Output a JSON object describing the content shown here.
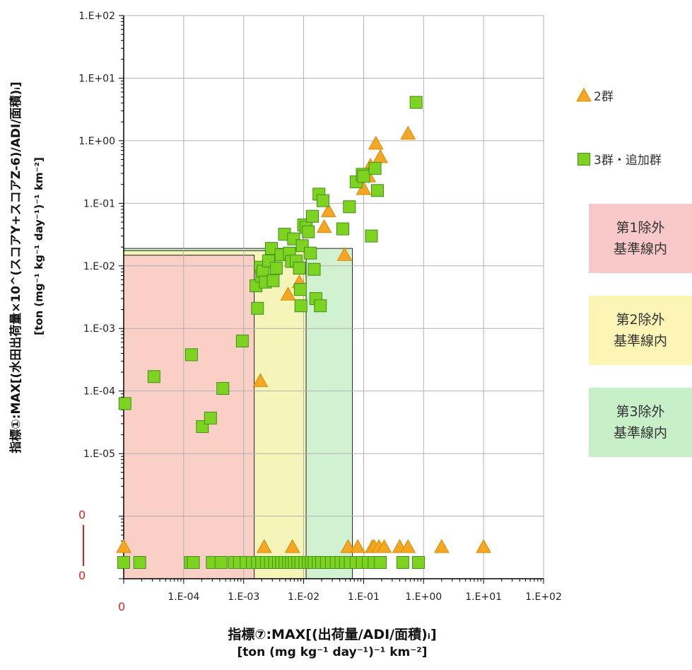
{
  "chart_data": {
    "type": "scatter",
    "x_axis": {
      "scale": "log",
      "range": [
        "1.E-05",
        "1.E+02"
      ],
      "ticks": [
        "1.E-04",
        "1.E-03",
        "1.E-02",
        "1.E-01",
        "1.E+00",
        "1.E+01",
        "1.E+02"
      ],
      "zero_label": "0",
      "label_line1": "指標⑦:MAX[(出荷量/ADI/面積)ᵢ]",
      "label_line2": "[ton (mg kg⁻¹ day⁻¹)⁻¹ km⁻²]"
    },
    "y_axis": {
      "scale": "log",
      "range": [
        "1.E-07",
        "1.E+02"
      ],
      "ticks": [
        "1.E+02",
        "1.E+01",
        "1.E+00",
        "1.E-01",
        "1.E-02",
        "1.E-03",
        "1.E-04",
        "1.E-05"
      ],
      "zero_labels": [
        "0",
        "0"
      ],
      "label_line1": "指標①:MAX[(水田出荷量×10^(スコアY+スコアZ-6)/ADI/面積)ᵢ]",
      "label_line2": "[ton (mg⁻¹ kg⁻¹ day⁻¹)⁻¹ km⁻²]"
    },
    "grid": true,
    "legend_position": "right",
    "series": [
      {
        "name": "2群",
        "marker": "triangle",
        "color": "#f5a623",
        "points": [
          [
            1e-05,
            0
          ],
          [
            0.0019,
            0.000145
          ],
          [
            0.0022,
            0
          ],
          [
            0.0055,
            0.0035
          ],
          [
            0.0065,
            0
          ],
          [
            0.0085,
            0.0055
          ],
          [
            0.022,
            0.042
          ],
          [
            0.026,
            0.075
          ],
          [
            0.048,
            0.015
          ],
          [
            0.055,
            0
          ],
          [
            0.08,
            0
          ],
          [
            0.1,
            0.17
          ],
          [
            0.12,
            0.27
          ],
          [
            0.13,
            0.4
          ],
          [
            0.14,
            0
          ],
          [
            0.15,
            0
          ],
          [
            0.16,
            0.9
          ],
          [
            0.18,
            0
          ],
          [
            0.19,
            0.55
          ],
          [
            0.22,
            0
          ],
          [
            0.4,
            0
          ],
          [
            0.55,
            1.3
          ],
          [
            0.55,
            0
          ],
          [
            2.0,
            0
          ],
          [
            10.0,
            0
          ]
        ]
      },
      {
        "name": "3群・追加群",
        "marker": "square",
        "color": "#7ed321",
        "points": [
          [
            1.05e-05,
            6.3e-05
          ],
          [
            3.2e-05,
            0.00017
          ],
          [
            0.000135,
            0.00038
          ],
          [
            0.000205,
            2.7e-05
          ],
          [
            0.00028,
            3.7e-05
          ],
          [
            0.00045,
            0.00011
          ],
          [
            0.00095,
            0.00063
          ],
          [
            0.0016,
            0.0048
          ],
          [
            0.0017,
            0.0021
          ],
          [
            0.0019,
            0.0095
          ],
          [
            0.002,
            0.0068
          ],
          [
            0.0021,
            0.0082
          ],
          [
            0.0023,
            0.0055
          ],
          [
            0.0026,
            0.012
          ],
          [
            0.0029,
            0.019
          ],
          [
            0.0031,
            0.0058
          ],
          [
            0.0035,
            0.0092
          ],
          [
            0.0042,
            0.015
          ],
          [
            0.0048,
            0.032
          ],
          [
            0.0058,
            0.016
          ],
          [
            0.0063,
            0.0118
          ],
          [
            0.0068,
            0.027
          ],
          [
            0.0075,
            0.012
          ],
          [
            0.0085,
            0.0092
          ],
          [
            0.0088,
            0.0042
          ],
          [
            0.009,
            0.0023
          ],
          [
            0.0095,
            0.021
          ],
          [
            0.01,
            0.045
          ],
          [
            0.011,
            0.041
          ],
          [
            0.012,
            0.035
          ],
          [
            0.013,
            0.016
          ],
          [
            0.014,
            0.062
          ],
          [
            0.015,
            0.0088
          ],
          [
            0.016,
            0.003
          ],
          [
            0.018,
            0.14
          ],
          [
            0.019,
            0.0023
          ],
          [
            0.021,
            0.11
          ],
          [
            0.045,
            0.039
          ],
          [
            0.058,
            0.088
          ],
          [
            0.075,
            0.22
          ],
          [
            0.095,
            0.29
          ],
          [
            0.1,
            0.27
          ],
          [
            0.135,
            0.03
          ],
          [
            0.155,
            0.36
          ],
          [
            0.17,
            0.16
          ],
          [
            0.75,
            4.1
          ],
          [
            1e-05,
            0
          ],
          [
            1.85e-05,
            0
          ],
          [
            0.00013,
            0
          ],
          [
            0.000145,
            0
          ],
          [
            0.0003,
            0
          ],
          [
            0.00042,
            0
          ],
          [
            0.0007,
            0
          ],
          [
            0.00085,
            0
          ],
          [
            0.0011,
            0
          ],
          [
            0.0014,
            0
          ],
          [
            0.0017,
            0
          ],
          [
            0.002,
            0
          ],
          [
            0.0024,
            0
          ],
          [
            0.0028,
            0
          ],
          [
            0.0033,
            0
          ],
          [
            0.0038,
            0
          ],
          [
            0.0043,
            0
          ],
          [
            0.0049,
            0
          ],
          [
            0.0056,
            0
          ],
          [
            0.0063,
            0
          ],
          [
            0.007,
            0
          ],
          [
            0.008,
            0
          ],
          [
            0.009,
            0
          ],
          [
            0.0105,
            0
          ],
          [
            0.012,
            0
          ],
          [
            0.0135,
            0
          ],
          [
            0.015,
            0
          ],
          [
            0.0175,
            0
          ],
          [
            0.02,
            0
          ],
          [
            0.024,
            0
          ],
          [
            0.029,
            0
          ],
          [
            0.035,
            0
          ],
          [
            0.042,
            0
          ],
          [
            0.05,
            0
          ],
          [
            0.06,
            0
          ],
          [
            0.075,
            0
          ],
          [
            0.095,
            0
          ],
          [
            0.12,
            0
          ],
          [
            0.15,
            0
          ],
          [
            0.19,
            0
          ],
          [
            0.45,
            0
          ],
          [
            0.82,
            0
          ]
        ]
      }
    ],
    "regions": [
      {
        "label": "第1除外\n基準線内",
        "color": "#f9c8c8",
        "x_max": 0.0015,
        "y_max": 0.0148
      },
      {
        "label": "第2除外\n基準線内",
        "color": "#fcf5b5",
        "x_max": 0.011,
        "y_max": 0.0175
      },
      {
        "label": "第3除外\n基準線内",
        "color": "#c8f0c8",
        "x_max": 0.065,
        "y_max": 0.019
      }
    ]
  }
}
